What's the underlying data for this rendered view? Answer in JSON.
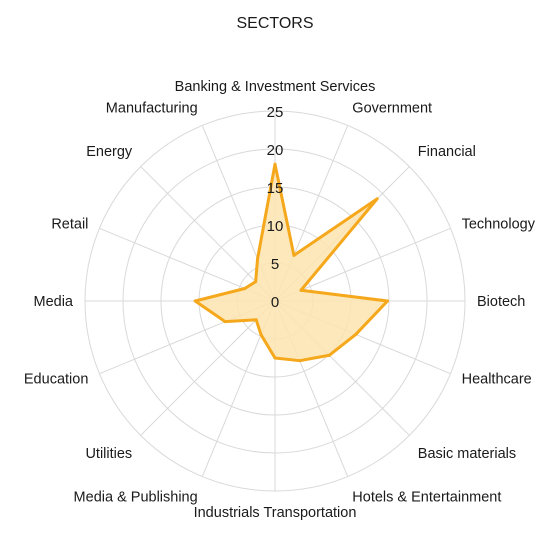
{
  "chart_data": {
    "type": "radar",
    "title": "SECTORS",
    "rlim": [
      0,
      25
    ],
    "ticks": [
      0,
      5,
      10,
      15,
      20,
      25
    ],
    "grid": true,
    "legend": "none",
    "categories": [
      "Banking & Investment Services",
      "Government",
      "Financial",
      "Technology",
      "Biotech",
      "Healthcare",
      "Basic materials",
      "Hotels & Entertainment",
      "Industrials Transportation",
      "Media & Publishing",
      "Utilities",
      "Education",
      "Media",
      "Retail",
      "Energy",
      "Manufacturing"
    ],
    "series": [
      {
        "values": [
          18,
          6.5,
          19,
          3.7,
          14.8,
          11.5,
          10.1,
          8.5,
          7.5,
          4.8,
          3.5,
          7.1,
          10.5,
          4.3,
          3.6,
          6
        ]
      }
    ],
    "colors": {
      "line": "#f5a81c",
      "fill": "#fde4b0",
      "grid": "#d9d9d9",
      "text": "#1a1a1a"
    }
  }
}
